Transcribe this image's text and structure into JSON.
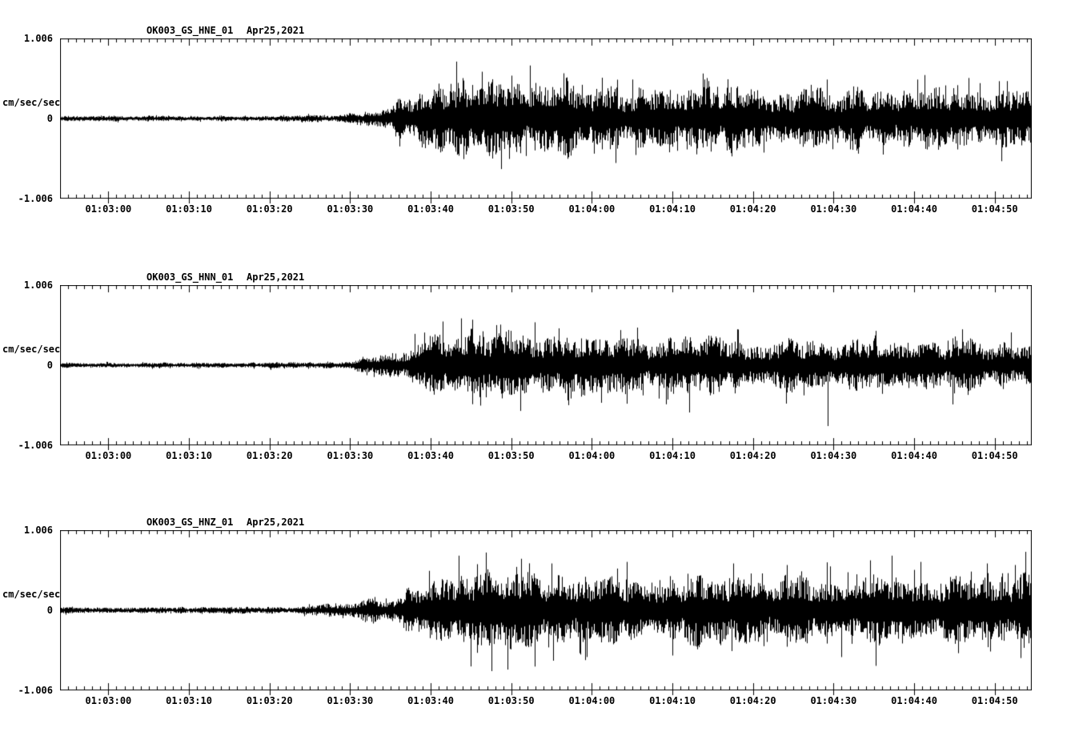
{
  "colors": {
    "trace": "#000000",
    "background": "#ffffff"
  },
  "chart_data": [
    {
      "type": "line",
      "station_channel": "OK003_GS_HNE_01",
      "date": "Apr25,2021",
      "ylabel": "cm/sec/sec",
      "y_tick_labels": [
        "1.006",
        "0",
        "-1.006"
      ],
      "ylim": [
        -1.006,
        1.006
      ],
      "x_ticks": [
        "01:03:00",
        "01:03:10",
        "01:03:20",
        "01:03:30",
        "01:03:40",
        "01:03:50",
        "01:04:00",
        "01:04:10",
        "01:04:20",
        "01:04:30",
        "01:04:40",
        "01:04:50"
      ],
      "x_window": {
        "start_offset_s": -6,
        "end_offset_s": 114.5,
        "tick_interval_s": 10
      },
      "seed": 101,
      "envelope": [
        [
          0,
          0.032
        ],
        [
          30,
          0.035
        ],
        [
          34,
          0.05
        ],
        [
          38,
          0.09
        ],
        [
          42,
          0.22
        ],
        [
          46,
          0.38
        ],
        [
          50,
          0.46
        ],
        [
          54,
          0.42
        ],
        [
          58,
          0.4
        ],
        [
          63,
          0.44
        ],
        [
          68,
          0.38
        ],
        [
          75,
          0.34
        ],
        [
          82,
          0.36
        ],
        [
          90,
          0.33
        ],
        [
          97,
          0.36
        ],
        [
          104,
          0.33
        ],
        [
          111,
          0.36
        ],
        [
          120.5,
          0.34
        ]
      ],
      "spikes": [
        [
          49.2,
          0.73
        ],
        [
          50.1,
          -0.52
        ],
        [
          52.4,
          0.6
        ],
        [
          56.0,
          0.55
        ],
        [
          57.8,
          -0.48
        ],
        [
          58.3,
          0.68
        ],
        [
          62.5,
          0.58
        ],
        [
          66.3,
          -0.45
        ],
        [
          71.0,
          0.5
        ],
        [
          80.5,
          0.48
        ],
        [
          95.2,
          0.5
        ],
        [
          99.0,
          -0.45
        ],
        [
          106.4,
          0.5
        ],
        [
          112.8,
          0.52
        ],
        [
          117.5,
          0.48
        ]
      ]
    },
    {
      "type": "line",
      "station_channel": "OK003_GS_HNN_01",
      "date": "Apr25,2021",
      "ylabel": "cm/sec/sec",
      "y_tick_labels": [
        "1.006",
        "0",
        "-1.006"
      ],
      "ylim": [
        -1.006,
        1.006
      ],
      "x_ticks": [
        "01:03:00",
        "01:03:10",
        "01:03:20",
        "01:03:30",
        "01:03:40",
        "01:03:50",
        "01:04:00",
        "01:04:10",
        "01:04:20",
        "01:04:30",
        "01:04:40",
        "01:04:50"
      ],
      "x_window": {
        "start_offset_s": -6,
        "end_offset_s": 114.5,
        "tick_interval_s": 10
      },
      "seed": 202,
      "envelope": [
        [
          0,
          0.03
        ],
        [
          32,
          0.033
        ],
        [
          36,
          0.05
        ],
        [
          40,
          0.12
        ],
        [
          44,
          0.26
        ],
        [
          48,
          0.36
        ],
        [
          52,
          0.38
        ],
        [
          56,
          0.34
        ],
        [
          62,
          0.32
        ],
        [
          70,
          0.3
        ],
        [
          78,
          0.31
        ],
        [
          86,
          0.3
        ],
        [
          94,
          0.31
        ],
        [
          102,
          0.3
        ],
        [
          110,
          0.31
        ],
        [
          120.5,
          0.3
        ]
      ],
      "spikes": [
        [
          47.5,
          0.56
        ],
        [
          49.8,
          0.6
        ],
        [
          51.2,
          -0.5
        ],
        [
          54.6,
          0.52
        ],
        [
          58.9,
          0.55
        ],
        [
          63.0,
          -0.45
        ],
        [
          69.5,
          0.45
        ],
        [
          84.0,
          0.46
        ],
        [
          95.3,
          -0.78
        ],
        [
          101.2,
          0.44
        ],
        [
          112.0,
          0.46
        ],
        [
          118.0,
          0.42
        ]
      ]
    },
    {
      "type": "line",
      "station_channel": "OK003_GS_HNZ_01",
      "date": "Apr25,2021",
      "ylabel": "cm/sec/sec",
      "y_tick_labels": [
        "1.006",
        "0",
        "-1.006"
      ],
      "ylim": [
        -1.006,
        1.006
      ],
      "x_ticks": [
        "01:03:00",
        "01:03:10",
        "01:03:20",
        "01:03:30",
        "01:03:40",
        "01:03:50",
        "01:04:00",
        "01:04:10",
        "01:04:20",
        "01:04:30",
        "01:04:40",
        "01:04:50"
      ],
      "x_window": {
        "start_offset_s": -6,
        "end_offset_s": 114.5,
        "tick_interval_s": 10
      },
      "seed": 303,
      "envelope": [
        [
          0,
          0.035
        ],
        [
          28,
          0.04
        ],
        [
          34,
          0.07
        ],
        [
          38,
          0.12
        ],
        [
          42,
          0.2
        ],
        [
          46,
          0.3
        ],
        [
          50,
          0.42
        ],
        [
          54,
          0.44
        ],
        [
          58,
          0.4
        ],
        [
          64,
          0.38
        ],
        [
          72,
          0.36
        ],
        [
          80,
          0.4
        ],
        [
          88,
          0.37
        ],
        [
          96,
          0.4
        ],
        [
          104,
          0.42
        ],
        [
          112,
          0.39
        ],
        [
          120.5,
          0.41
        ]
      ],
      "spikes": [
        [
          49.5,
          0.7
        ],
        [
          51.0,
          -0.72
        ],
        [
          52.8,
          0.74
        ],
        [
          53.5,
          -0.78
        ],
        [
          55.5,
          -0.6
        ],
        [
          57.2,
          0.66
        ],
        [
          61.0,
          0.6
        ],
        [
          64.5,
          -0.55
        ],
        [
          70.3,
          0.62
        ],
        [
          76.0,
          -0.58
        ],
        [
          83.5,
          0.6
        ],
        [
          90.2,
          0.58
        ],
        [
          97.0,
          -0.6
        ],
        [
          100.5,
          0.64
        ],
        [
          103.2,
          0.7
        ],
        [
          106.8,
          0.62
        ],
        [
          111.5,
          -0.55
        ],
        [
          115.0,
          0.6
        ],
        [
          118.5,
          0.58
        ]
      ]
    }
  ]
}
